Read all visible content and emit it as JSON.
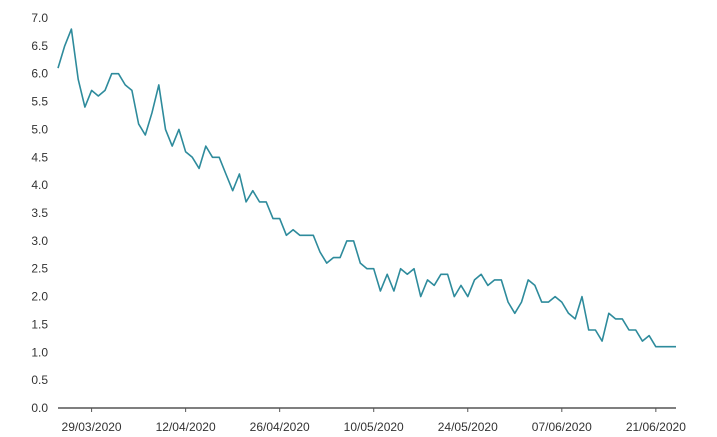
{
  "chart_data": {
    "type": "line",
    "title": "",
    "xlabel": "",
    "ylabel": "",
    "ylim": [
      0,
      7
    ],
    "y_ticks": [
      "0.0",
      "0.5",
      "1.0",
      "1.5",
      "2.0",
      "2.5",
      "3.0",
      "3.5",
      "4.0",
      "4.5",
      "5.0",
      "5.5",
      "6.0",
      "6.5",
      "7.0"
    ],
    "x_ticks": [
      "29/03/2020",
      "12/04/2020",
      "26/04/2020",
      "10/05/2020",
      "24/05/2020",
      "07/06/2020",
      "21/06/2020"
    ],
    "x_range": [
      "24/03/2020",
      "24/06/2020"
    ],
    "grid": false,
    "line_color": "#2e8b9c",
    "series": [
      {
        "x": [
          "24/03/2020",
          "25/03/2020",
          "26/03/2020",
          "27/03/2020",
          "28/03/2020",
          "29/03/2020",
          "30/03/2020",
          "31/03/2020",
          "01/04/2020",
          "02/04/2020",
          "03/04/2020",
          "04/04/2020",
          "05/04/2020",
          "06/04/2020",
          "07/04/2020",
          "08/04/2020",
          "09/04/2020",
          "10/04/2020",
          "11/04/2020",
          "12/04/2020",
          "13/04/2020",
          "14/04/2020",
          "15/04/2020",
          "16/04/2020",
          "17/04/2020",
          "18/04/2020",
          "19/04/2020",
          "20/04/2020",
          "21/04/2020",
          "22/04/2020",
          "23/04/2020",
          "24/04/2020",
          "25/04/2020",
          "26/04/2020",
          "27/04/2020",
          "28/04/2020",
          "29/04/2020",
          "30/04/2020",
          "01/05/2020",
          "02/05/2020",
          "03/05/2020",
          "04/05/2020",
          "05/05/2020",
          "06/05/2020",
          "07/05/2020",
          "08/05/2020",
          "09/05/2020",
          "10/05/2020",
          "11/05/2020",
          "12/05/2020",
          "13/05/2020",
          "14/05/2020",
          "15/05/2020",
          "16/05/2020",
          "17/05/2020",
          "18/05/2020",
          "19/05/2020",
          "20/05/2020",
          "21/05/2020",
          "22/05/2020",
          "23/05/2020",
          "24/05/2020",
          "25/05/2020",
          "26/05/2020",
          "27/05/2020",
          "28/05/2020",
          "29/05/2020",
          "30/05/2020",
          "31/05/2020",
          "01/06/2020",
          "02/06/2020",
          "03/06/2020",
          "04/06/2020",
          "05/06/2020",
          "06/06/2020",
          "07/06/2020",
          "08/06/2020",
          "09/06/2020",
          "10/06/2020",
          "11/06/2020",
          "12/06/2020",
          "13/06/2020",
          "14/06/2020",
          "15/06/2020",
          "16/06/2020",
          "17/06/2020",
          "18/06/2020",
          "19/06/2020",
          "20/06/2020",
          "21/06/2020",
          "22/06/2020",
          "23/06/2020",
          "24/06/2020"
        ],
        "y": [
          6.1,
          6.5,
          6.8,
          5.9,
          5.4,
          5.7,
          5.6,
          5.7,
          6.0,
          6.0,
          5.8,
          5.7,
          5.1,
          4.9,
          5.3,
          5.8,
          5.0,
          4.7,
          5.0,
          4.6,
          4.5,
          4.3,
          4.7,
          4.5,
          4.5,
          4.2,
          3.9,
          4.2,
          3.7,
          3.9,
          3.7,
          3.7,
          3.4,
          3.4,
          3.1,
          3.2,
          3.1,
          3.1,
          3.1,
          2.8,
          2.6,
          2.7,
          2.7,
          3.0,
          3.0,
          2.6,
          2.5,
          2.5,
          2.1,
          2.4,
          2.1,
          2.5,
          2.4,
          2.5,
          2.0,
          2.3,
          2.2,
          2.4,
          2.4,
          2.0,
          2.2,
          2.0,
          2.3,
          2.4,
          2.2,
          2.3,
          2.3,
          1.9,
          1.7,
          1.9,
          2.3,
          2.2,
          1.9,
          1.9,
          2.0,
          1.9,
          1.7,
          1.6,
          2.0,
          1.4,
          1.4,
          1.2,
          1.7,
          1.6,
          1.6,
          1.4,
          1.4,
          1.2,
          1.3,
          1.1,
          1.1,
          1.1,
          1.1
        ]
      }
    ]
  }
}
